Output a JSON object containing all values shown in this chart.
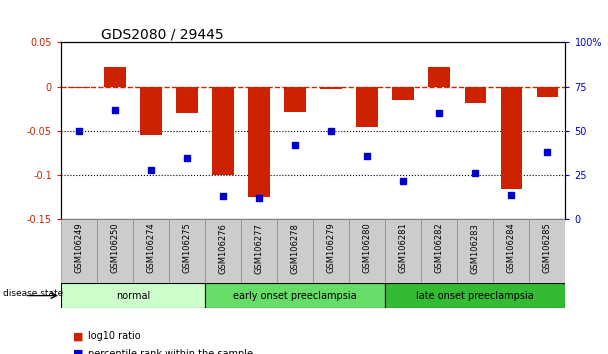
{
  "title": "GDS2080 / 29445",
  "samples": [
    "GSM106249",
    "GSM106250",
    "GSM106274",
    "GSM106275",
    "GSM106276",
    "GSM106277",
    "GSM106278",
    "GSM106279",
    "GSM106280",
    "GSM106281",
    "GSM106282",
    "GSM106283",
    "GSM106284",
    "GSM106285"
  ],
  "log10_ratio": [
    -0.001,
    0.022,
    -0.055,
    -0.03,
    -0.1,
    -0.125,
    -0.028,
    -0.002,
    -0.045,
    -0.015,
    0.022,
    -0.018,
    -0.115,
    -0.012
  ],
  "percentile_rank": [
    50,
    62,
    28,
    35,
    13,
    12,
    42,
    50,
    36,
    22,
    60,
    26,
    14,
    38
  ],
  "ylim_left": [
    -0.15,
    0.05
  ],
  "ylim_right": [
    0,
    100
  ],
  "groups": [
    {
      "label": "normal",
      "start": 0,
      "end": 3,
      "color": "#ccffcc"
    },
    {
      "label": "early onset preeclampsia",
      "start": 4,
      "end": 8,
      "color": "#66dd66"
    },
    {
      "label": "late onset preeclampsia",
      "start": 9,
      "end": 13,
      "color": "#33bb33"
    }
  ],
  "bar_color": "#cc2200",
  "dot_color": "#0000cc",
  "hline_color": "#cc2200",
  "dotline_color": "black",
  "tick_fontsize": 7,
  "sample_fontsize": 6,
  "label_fontsize": 8,
  "title_fontsize": 10,
  "xtick_gray": "#cccccc",
  "xtick_border": "#888888"
}
